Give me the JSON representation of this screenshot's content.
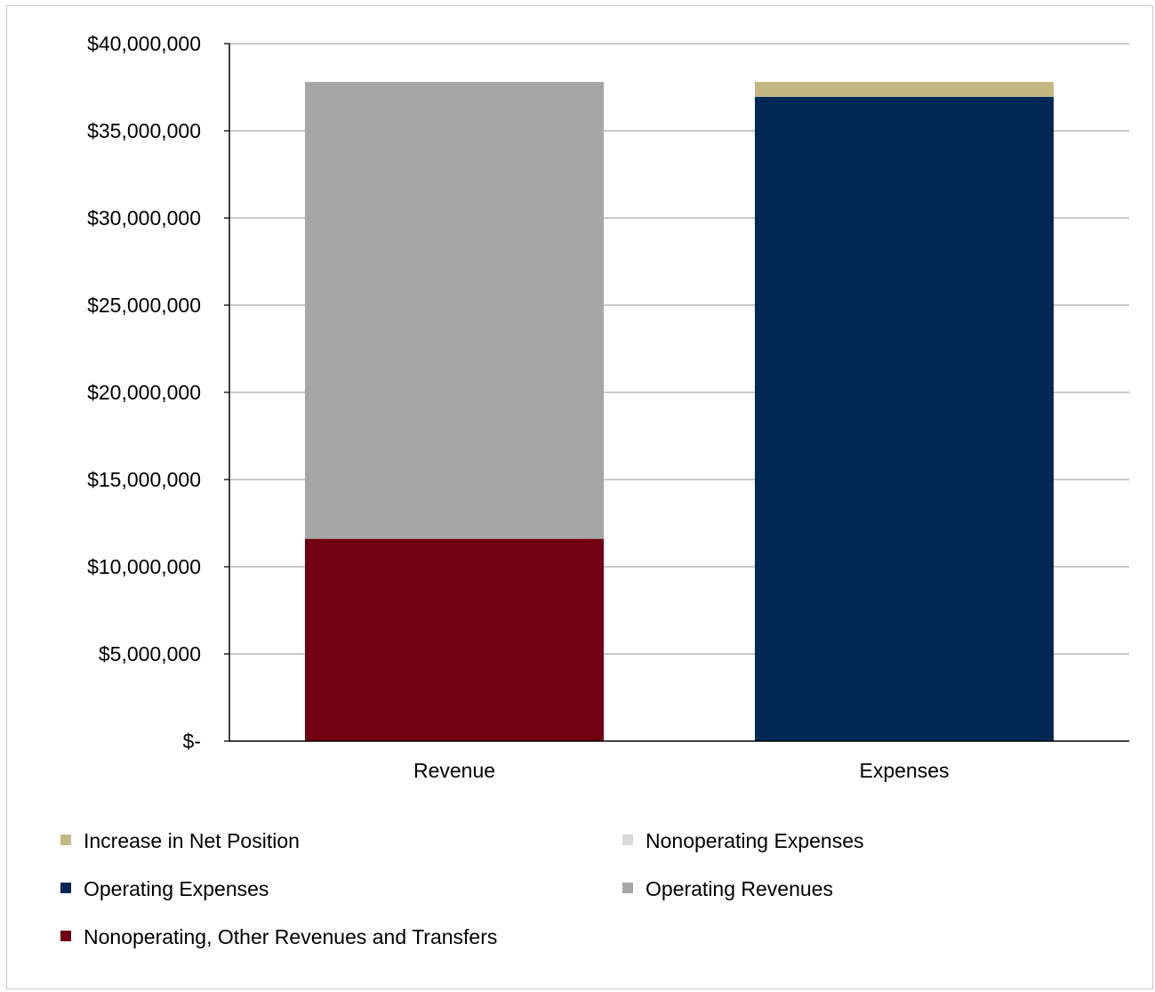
{
  "chart_data": {
    "type": "bar",
    "stacked": true,
    "title": "",
    "xlabel": "",
    "ylabel": "",
    "categories": [
      "Revenue",
      "Expenses"
    ],
    "ylim": [
      0,
      40000000
    ],
    "yticks": [
      0,
      5000000,
      10000000,
      15000000,
      20000000,
      25000000,
      30000000,
      35000000,
      40000000
    ],
    "ytick_labels": [
      "$-",
      "$5,000,000",
      "$10,000,000",
      "$15,000,000",
      "$20,000,000",
      "$25,000,000",
      "$30,000,000",
      "$35,000,000",
      "$40,000,000"
    ],
    "grid": true,
    "legend_position": "bottom",
    "series": [
      {
        "name": "Nonoperating, Other Revenues and Transfers",
        "color": "#720010",
        "values": [
          11600000,
          0
        ]
      },
      {
        "name": "Operating Revenues",
        "color": "#a6a6a6",
        "values": [
          26200000,
          0
        ]
      },
      {
        "name": "Operating Expenses",
        "color": "#002855",
        "values": [
          0,
          36950000
        ]
      },
      {
        "name": "Nonoperating Expenses",
        "color": "#d9d9d9",
        "values": [
          0,
          0
        ]
      },
      {
        "name": "Increase in Net Position",
        "color": "#c5b783",
        "values": [
          0,
          850000
        ]
      }
    ],
    "legend_order": [
      "Increase in Net Position",
      "Nonoperating Expenses",
      "Operating Expenses",
      "Operating Revenues",
      "Nonoperating, Other Revenues and Transfers"
    ]
  }
}
